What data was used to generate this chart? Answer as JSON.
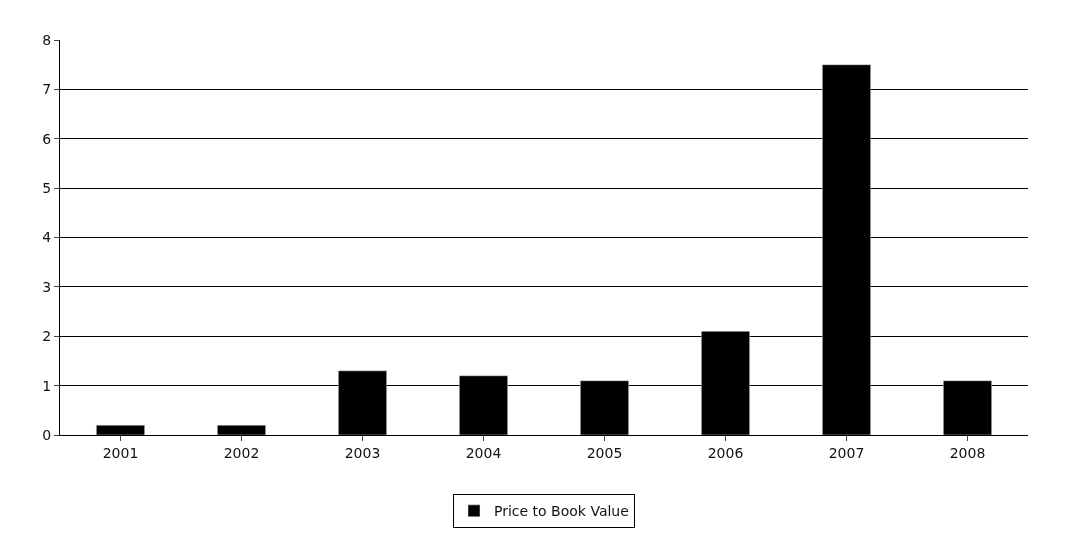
{
  "chart_data": {
    "type": "bar",
    "categories": [
      "2001",
      "2002",
      "2003",
      "2004",
      "2005",
      "2006",
      "2007",
      "2008"
    ],
    "series": [
      {
        "name": "Price to Book Value",
        "color": "#000000",
        "values": [
          0.2,
          0.2,
          1.3,
          1.2,
          1.1,
          2.1,
          7.5,
          1.1
        ]
      }
    ],
    "ylim": [
      0,
      8
    ],
    "yticks": [
      0,
      1,
      2,
      3,
      4,
      5,
      6,
      7,
      8
    ],
    "grid": "y",
    "legend": "bottom"
  }
}
